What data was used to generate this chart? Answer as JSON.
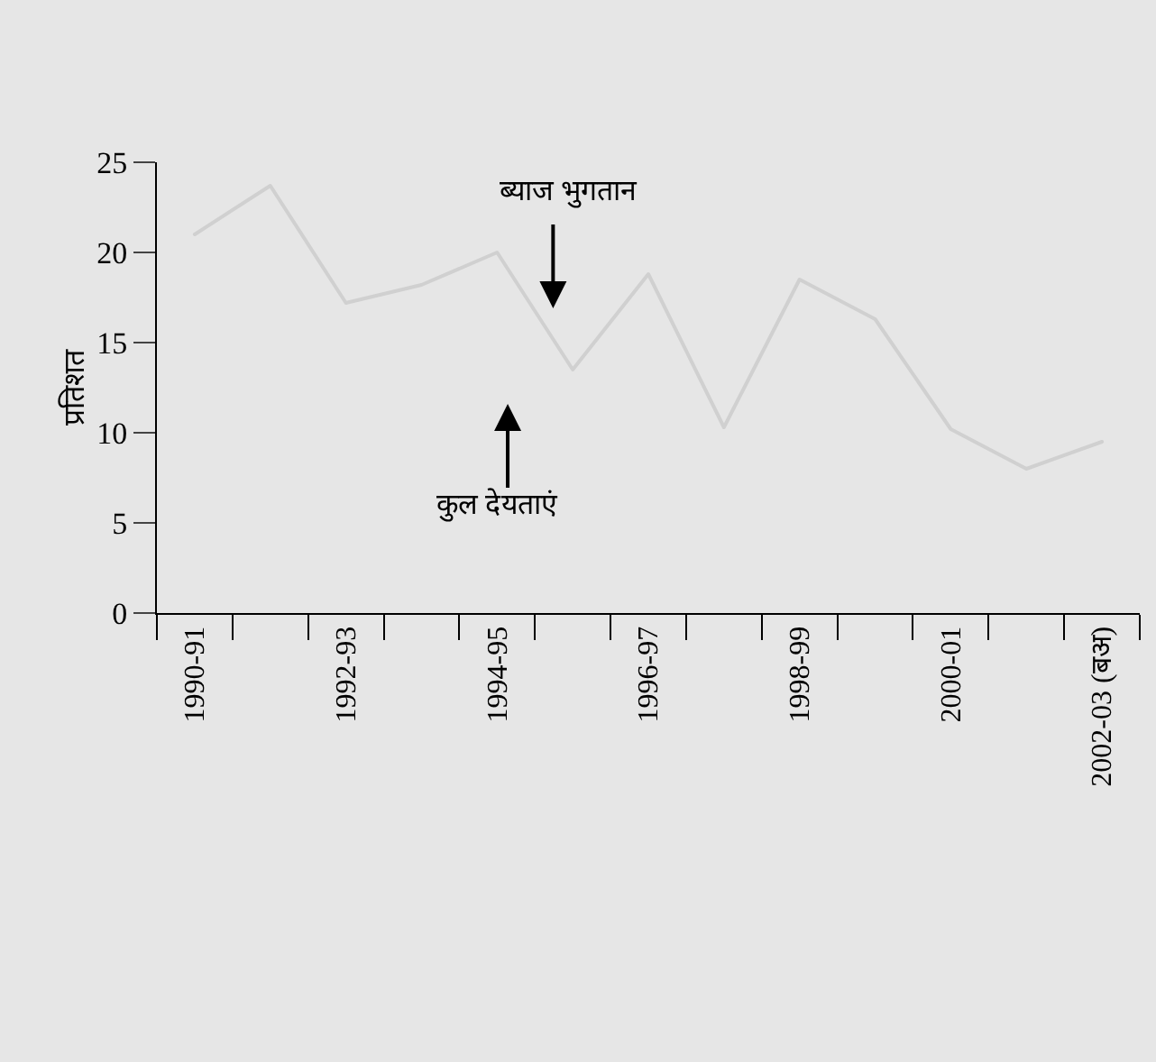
{
  "chart_data": {
    "type": "line",
    "ylabel": "प्रतिशत",
    "categories": [
      "1990-91",
      null,
      "1992-93",
      null,
      "1994-95",
      null,
      "1996-97",
      null,
      "1998-99",
      null,
      "2000-01",
      null,
      "2002-03 (बअ)"
    ],
    "series": [
      {
        "color": "#d0d0d0",
        "values": [
          21.0,
          23.7,
          17.2,
          18.2,
          20.0,
          13.5,
          18.8,
          10.3,
          18.5,
          16.3,
          10.2,
          8.0,
          9.5
        ]
      }
    ],
    "ylim": [
      0,
      25
    ],
    "yticks": [
      0,
      5,
      10,
      15,
      20,
      25
    ],
    "grid": false,
    "legend": false,
    "marker": "none",
    "line_style": "solid",
    "annotations": [
      "ब्याज भुगतान",
      "कुल देयताएं"
    ]
  }
}
